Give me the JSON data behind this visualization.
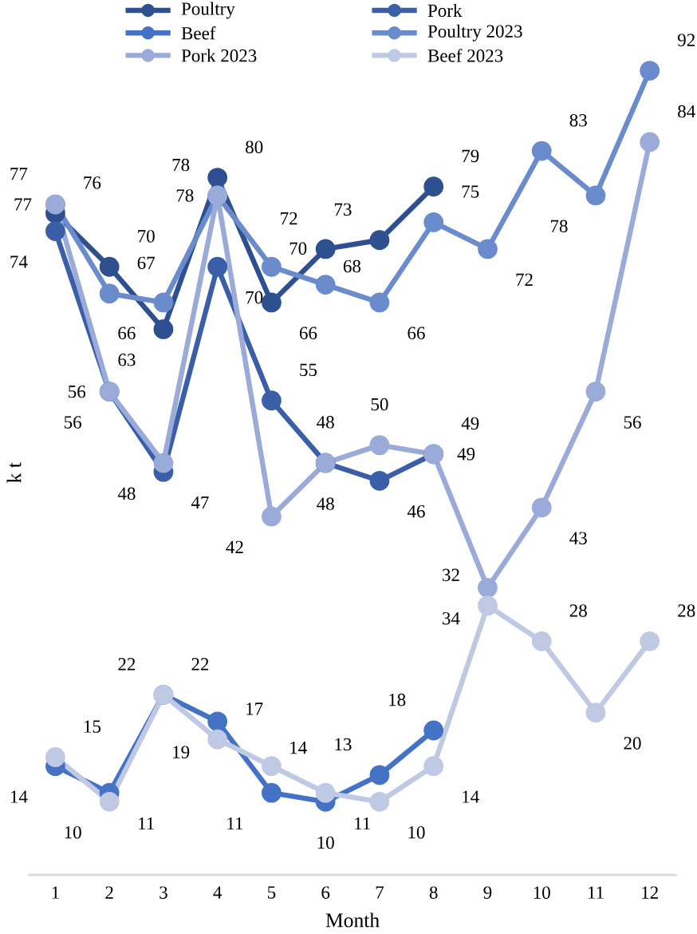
{
  "chart_data": {
    "type": "line",
    "xlabel": "Month",
    "ylabel": "k t",
    "categories": [
      "1",
      "2",
      "3",
      "4",
      "5",
      "6",
      "7",
      "8",
      "9",
      "10",
      "11",
      "12"
    ],
    "series": [
      {
        "name": "Poultry",
        "color": "#2e5090",
        "values": [
          76,
          70,
          63,
          80,
          66,
          72,
          73,
          79,
          null,
          null,
          null,
          null
        ]
      },
      {
        "name": "Pork",
        "color": "#3a5fa8",
        "values": [
          74,
          56,
          47,
          70,
          55,
          48,
          46,
          49,
          null,
          null,
          null,
          null
        ]
      },
      {
        "name": "Beef",
        "color": "#4472c4",
        "values": [
          14,
          11,
          22,
          19,
          11,
          10,
          13,
          18,
          null,
          null,
          null,
          null
        ]
      },
      {
        "name": "Poultry 2023",
        "color": "#6a8bcc",
        "values": [
          77,
          67,
          66,
          78,
          70,
          68,
          66,
          75,
          72,
          83,
          78,
          92
        ]
      },
      {
        "name": "Pork 2023",
        "color": "#9aabd9",
        "values": [
          77,
          56,
          48,
          78,
          42,
          48,
          50,
          49,
          34,
          43,
          56,
          84
        ]
      },
      {
        "name": "Beef 2023",
        "color": "#c0c9e4",
        "values": [
          15,
          10,
          22,
          17,
          14,
          11,
          10,
          14,
          32,
          28,
          20,
          28
        ]
      }
    ],
    "marker": "circle",
    "line_style": "solid",
    "legend": "top",
    "grid": false,
    "data_labels": true
  }
}
